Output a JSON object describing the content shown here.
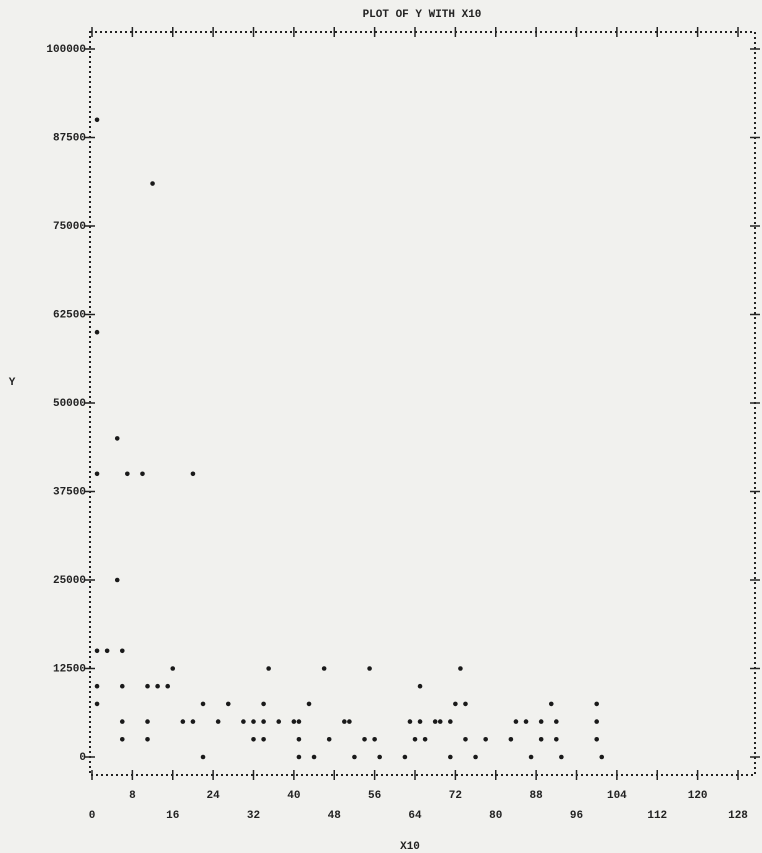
{
  "chart_data": {
    "type": "scatter",
    "title": "PLOT OF Y WITH X10",
    "x_label": "X10",
    "y_label": "Y",
    "xlim": [
      0,
      128
    ],
    "ylim": [
      0,
      100000
    ],
    "xticks": [
      0,
      8,
      16,
      24,
      32,
      40,
      48,
      56,
      64,
      72,
      80,
      88,
      96,
      104,
      112,
      120,
      128
    ],
    "yticks": [
      0,
      12500,
      25000,
      37500,
      50000,
      62500,
      75000,
      87500,
      100000
    ],
    "color": "#1a1a1a",
    "x": [
      1,
      12,
      1,
      5,
      1,
      7,
      10,
      20,
      5,
      1,
      3,
      6,
      16,
      35,
      46,
      55,
      73,
      1,
      6,
      11,
      13,
      15,
      65,
      1,
      22,
      27,
      34,
      43,
      72,
      74,
      91,
      100,
      6,
      11,
      18,
      20,
      25,
      30,
      32,
      34,
      37,
      40,
      41,
      50,
      51,
      63,
      65,
      68,
      69,
      71,
      84,
      86,
      89,
      92,
      100,
      6,
      11,
      32,
      34,
      41,
      47,
      54,
      56,
      64,
      66,
      74,
      78,
      83,
      89,
      92,
      100,
      22,
      41,
      44,
      52,
      57,
      62,
      71,
      76,
      87,
      93,
      101
    ],
    "y": [
      90000,
      81000,
      60000,
      45000,
      40000,
      40000,
      40000,
      40000,
      25000,
      15000,
      15000,
      15000,
      12500,
      12500,
      12500,
      12500,
      12500,
      10000,
      10000,
      10000,
      10000,
      10000,
      10000,
      7500,
      7500,
      7500,
      7500,
      7500,
      7500,
      7500,
      7500,
      7500,
      5000,
      5000,
      5000,
      5000,
      5000,
      5000,
      5000,
      5000,
      5000,
      5000,
      5000,
      5000,
      5000,
      5000,
      5000,
      5000,
      5000,
      5000,
      5000,
      5000,
      5000,
      5000,
      5000,
      2500,
      2500,
      2500,
      2500,
      2500,
      2500,
      2500,
      2500,
      2500,
      2500,
      2500,
      2500,
      2500,
      2500,
      2500,
      2500,
      0,
      0,
      0,
      0,
      0,
      0,
      0,
      0,
      0,
      0,
      0
    ]
  }
}
